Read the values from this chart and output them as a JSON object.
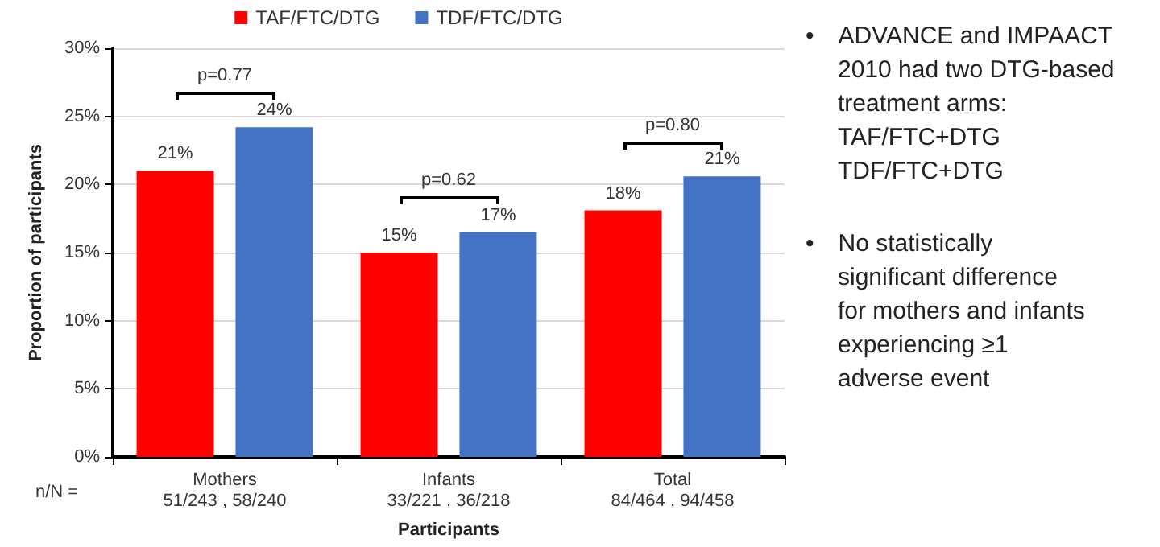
{
  "chart_data": {
    "type": "bar",
    "categories": [
      "Mothers\n51/243 , 58/240",
      "Infants\n33/221 , 36/218",
      "Total\n84/464 , 94/458"
    ],
    "series": [
      {
        "name": "TAF/FTC/DTG",
        "color": "#ff0000",
        "values": [
          21.0,
          15.0,
          18.1
        ],
        "value_labels": [
          "21%",
          "15%",
          "18%"
        ]
      },
      {
        "name": "TDF/FTC/DTG",
        "color": "#4472c4",
        "values": [
          24.2,
          16.5,
          20.6
        ],
        "value_labels": [
          "24%",
          "17%",
          "21%"
        ]
      }
    ],
    "xlabel": "Participants",
    "ylabel": "Proportion of participants",
    "ylim": [
      0,
      30
    ],
    "yticks": [
      {
        "value": 0,
        "label": "0%"
      },
      {
        "value": 5,
        "label": "5%"
      },
      {
        "value": 10,
        "label": "10%"
      },
      {
        "value": 15,
        "label": "15%"
      },
      {
        "value": 20,
        "label": "20%"
      },
      {
        "value": 25,
        "label": "25%"
      },
      {
        "value": 30,
        "label": "30%"
      }
    ],
    "grid": "y",
    "legend": "top",
    "annotations": [
      "p=0.77",
      "p=0.62",
      "p=0.80",
      "n/N =",
      "• ADVANCE and IMPAACT\n2010 had two DTG-based\ntreatment arms:\nTAF/FTC+DTG\nTDF/FTC+DTG",
      "• No statistically\nsignificant difference\nfor mothers and infants\nexperiencing ≥1\nadverse event"
    ]
  }
}
